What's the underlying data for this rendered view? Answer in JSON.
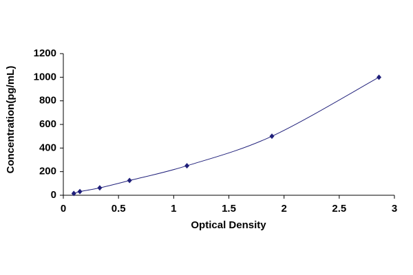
{
  "chart_data": {
    "type": "scatter",
    "x_label": "Optical Density",
    "y_label": "Concentration(pg/mL)",
    "x": [
      0.095,
      0.15,
      0.33,
      0.6,
      1.12,
      1.89,
      2.86
    ],
    "values": [
      15.6,
      31.2,
      62.5,
      125,
      250,
      500,
      1000
    ],
    "color": "#1f1f7a",
    "xlim": [
      0,
      3
    ],
    "xticks": [
      0,
      0.5,
      1,
      1.5,
      2,
      2.5,
      3
    ],
    "ylim": [
      0,
      1200
    ],
    "yticks": [
      0,
      200,
      400,
      600,
      800,
      1000,
      1200
    ],
    "grid": false
  }
}
